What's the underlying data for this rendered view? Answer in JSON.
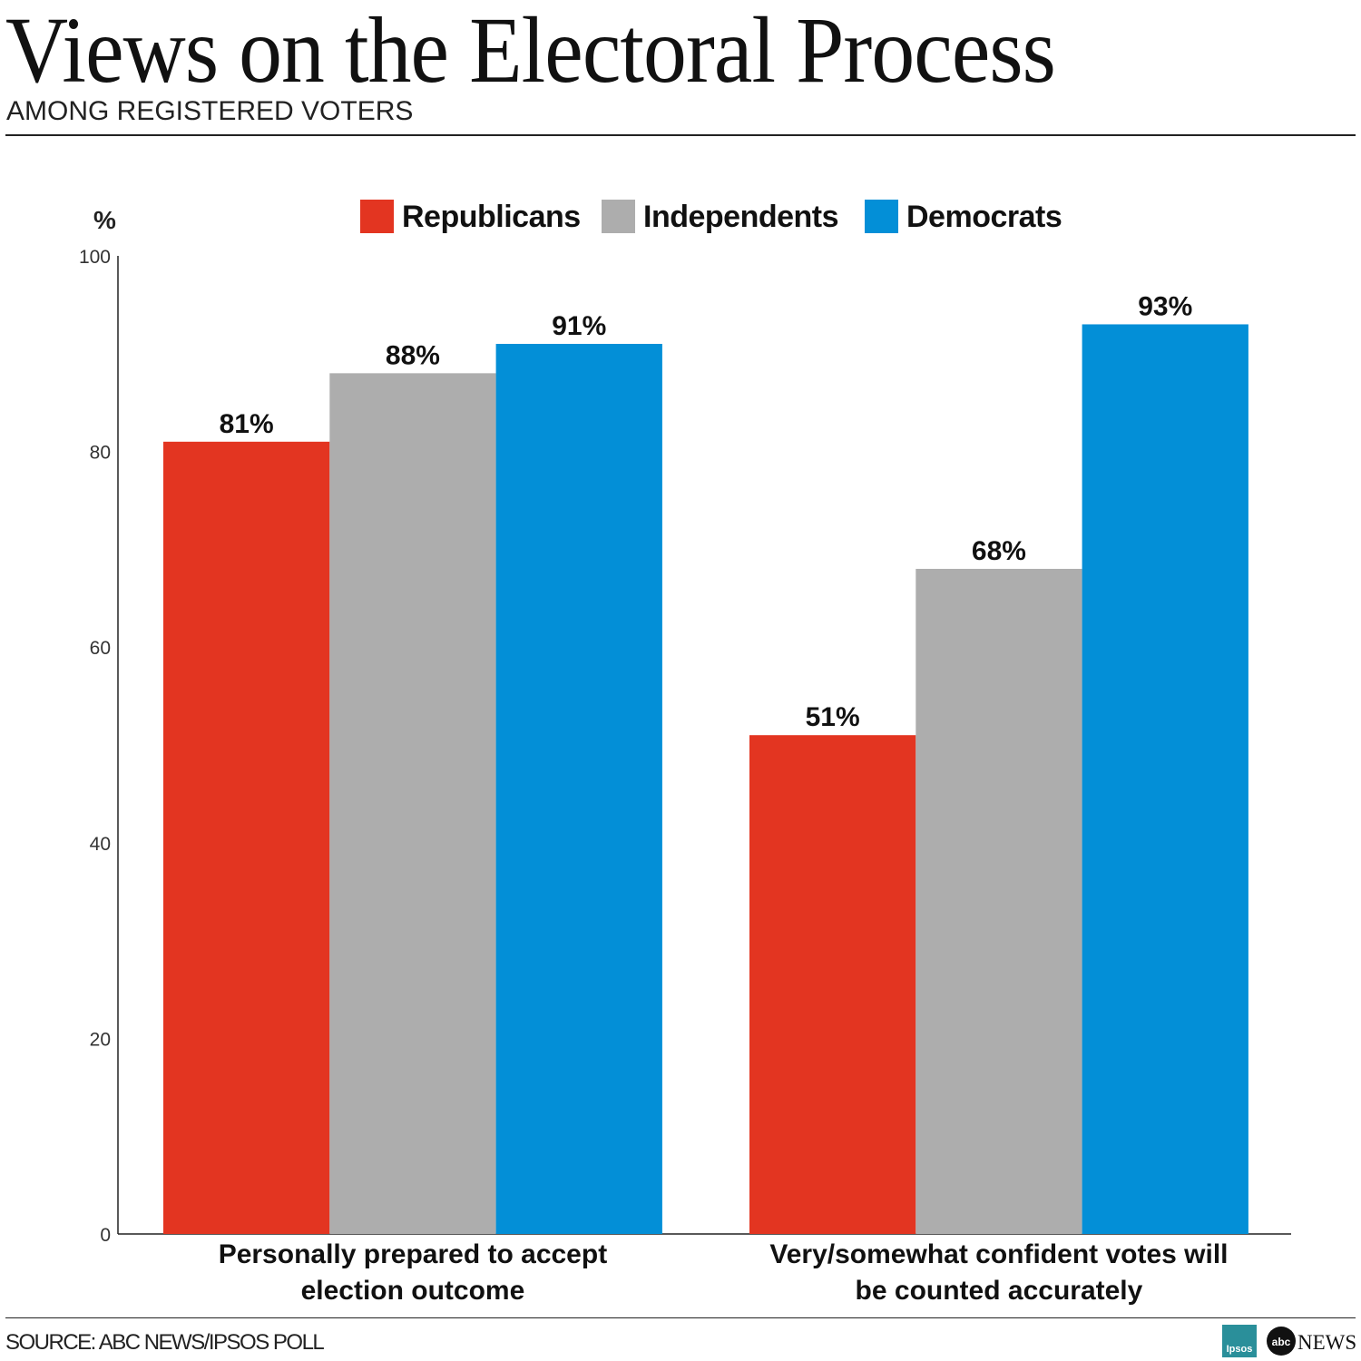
{
  "chart_data": {
    "type": "bar",
    "title": "Views on the Electoral Process",
    "subtitle": "AMONG REGISTERED VOTERS",
    "ylabel": "%",
    "xlabel": "",
    "ylim": [
      0,
      100
    ],
    "yticks": [
      0,
      20,
      40,
      60,
      80,
      100
    ],
    "grid": false,
    "legend_position": "top",
    "categories": [
      [
        "Personally prepared to accept",
        "election outcome"
      ],
      [
        "Very/somewhat confident votes will",
        "be counted accurately"
      ]
    ],
    "series": [
      {
        "name": "Republicans",
        "color": "#e33521",
        "values": [
          81,
          51
        ],
        "labels": [
          "81%",
          "51%"
        ]
      },
      {
        "name": "Independents",
        "color": "#adadad",
        "values": [
          88,
          68
        ],
        "labels": [
          "88%",
          "68%"
        ]
      },
      {
        "name": "Democrats",
        "color": "#038fd7",
        "values": [
          91,
          93
        ],
        "labels": [
          "91%",
          "93%"
        ]
      }
    ]
  },
  "source": "SOURCE: ABC NEWS/IPSOS POLL",
  "logos": [
    "Ipsos",
    "abc NEWS"
  ]
}
